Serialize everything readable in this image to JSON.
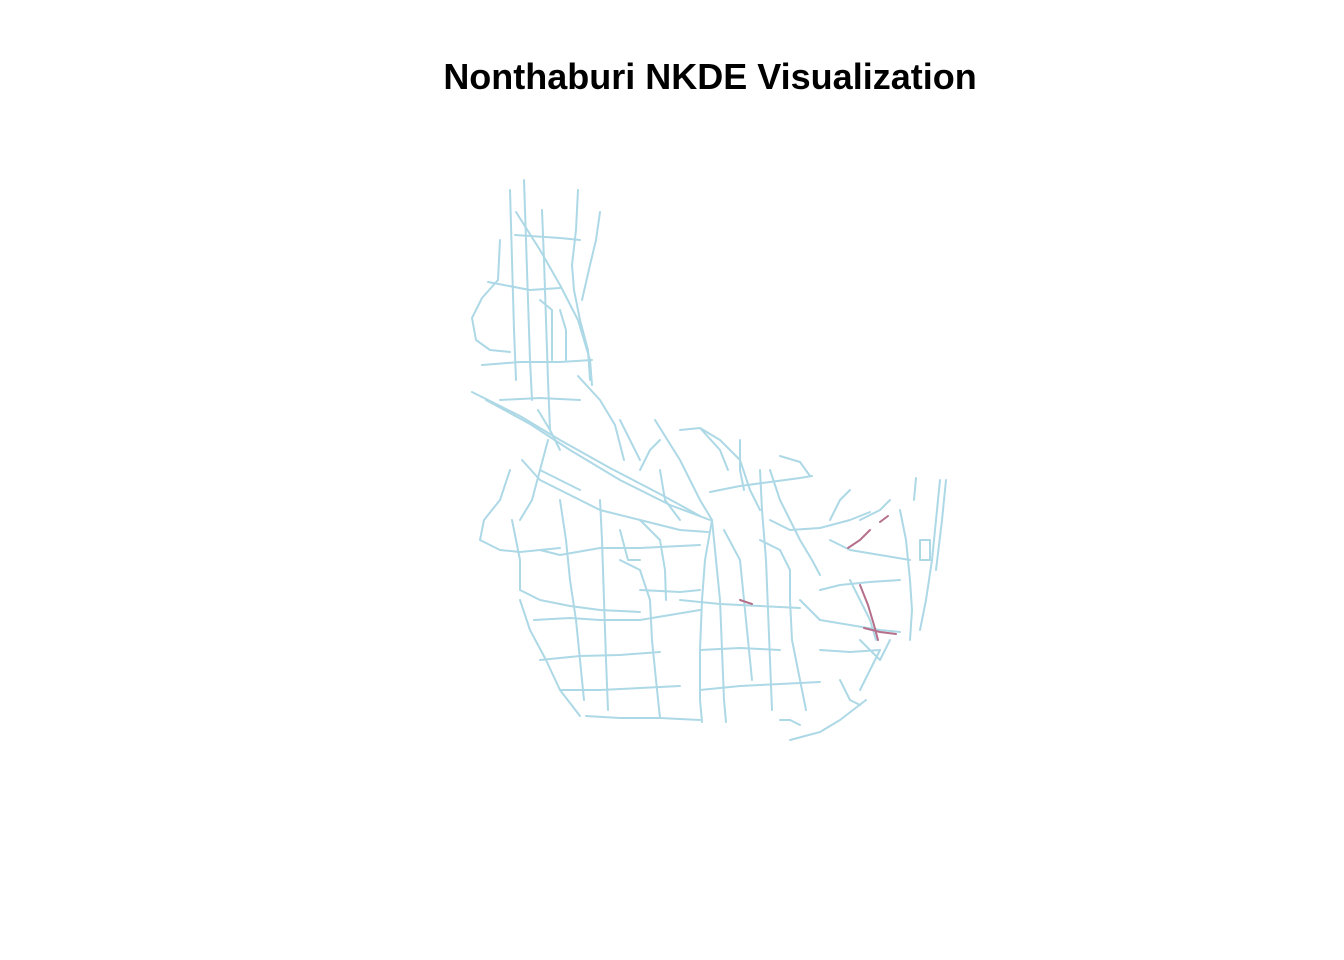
{
  "title": "Nonthaburi NKDE Visualization",
  "legend": null,
  "colors": {
    "background": "#ffffff",
    "low_density": "#add8e6",
    "high_density": "#b56f8b"
  }
}
